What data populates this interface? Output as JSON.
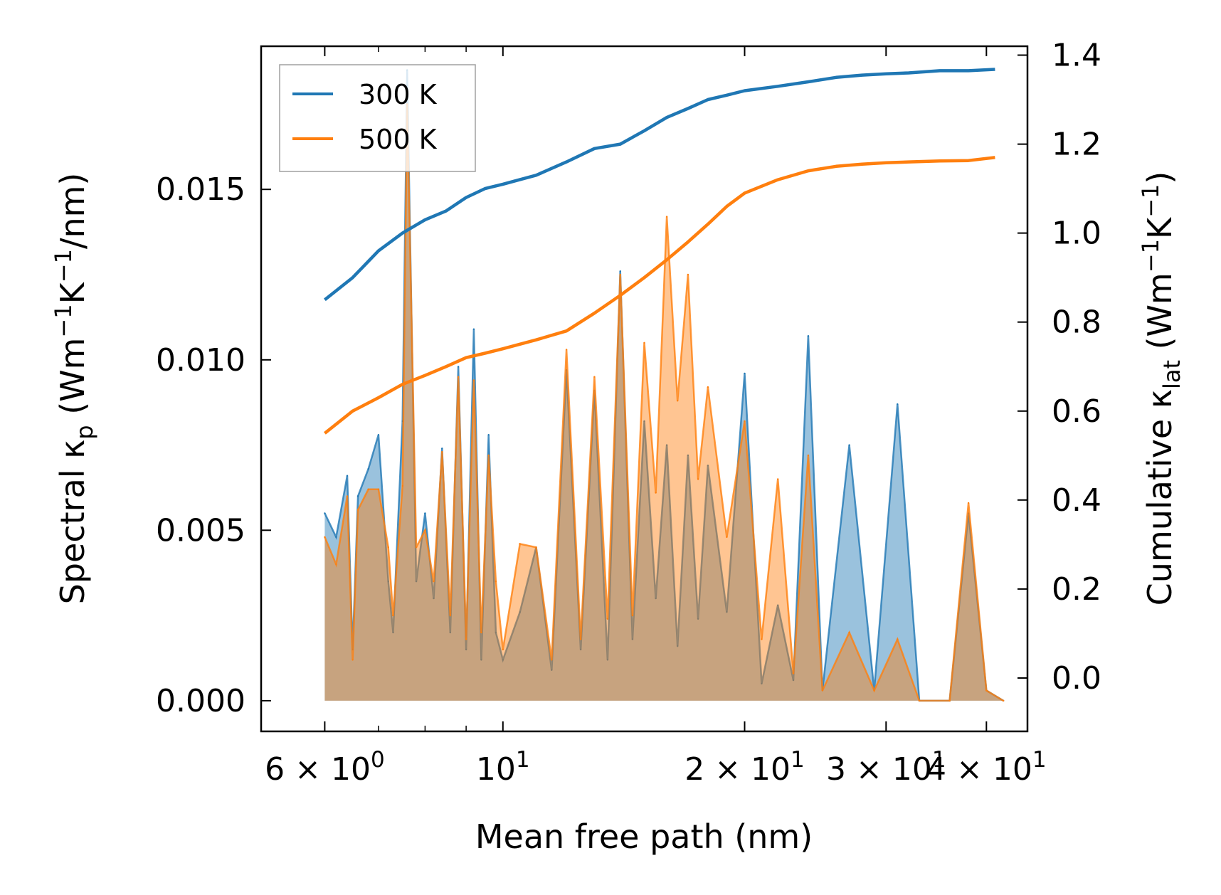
{
  "chart_data": {
    "type": "line",
    "xscale": "log",
    "xlabel": "Mean free path (nm)",
    "ylabel_left": {
      "main": "Spectral κ",
      "sub": "p",
      "unit_prefix": " (Wm",
      "exp1": "−1",
      "unit_mid": "K",
      "exp2": "−1",
      "unit_suffix": "/nm)"
    },
    "ylabel_right": {
      "main": "Cumulative κ",
      "sub": "lat",
      "unit_prefix": " (Wm",
      "exp1": "−1",
      "unit_mid": "K",
      "exp2": "−1",
      "unit_suffix": ")"
    },
    "xlim": [
      5.0,
      45.0
    ],
    "ylim_left": [
      -0.0009,
      0.0192
    ],
    "ylim_right": [
      -0.12,
      1.42
    ],
    "x_ticks": [
      {
        "value": 6,
        "mant": "6 × 10",
        "exp": "0"
      },
      {
        "value": 10,
        "mant": "10",
        "exp": "1"
      },
      {
        "value": 20,
        "mant": "2 × 10",
        "exp": "1"
      },
      {
        "value": 30,
        "mant": "3 × 10",
        "exp": "1"
      },
      {
        "value": 40,
        "mant": "4 × 10",
        "exp": "1"
      }
    ],
    "x_minor_ticks": [
      7,
      8,
      9
    ],
    "y_left_ticks": [
      {
        "value": 0.0,
        "label": "0.000"
      },
      {
        "value": 0.005,
        "label": "0.005"
      },
      {
        "value": 0.01,
        "label": "0.010"
      },
      {
        "value": 0.015,
        "label": "0.015"
      }
    ],
    "y_right_ticks": [
      {
        "value": 0.0,
        "label": "0.0"
      },
      {
        "value": 0.2,
        "label": "0.2"
      },
      {
        "value": 0.4,
        "label": "0.4"
      },
      {
        "value": 0.6,
        "label": "0.6"
      },
      {
        "value": 0.8,
        "label": "0.8"
      },
      {
        "value": 1.0,
        "label": "1.0"
      },
      {
        "value": 1.2,
        "label": "1.2"
      },
      {
        "value": 1.4,
        "label": "1.4"
      }
    ],
    "colors": {
      "300K": "#1f77b4",
      "500K": "#ff7f0e"
    },
    "legend": {
      "position": "upper-left",
      "entries": [
        "300 K",
        "500 K"
      ]
    },
    "series": [
      {
        "name": "300 K",
        "axis": "right",
        "kind": "cumulative",
        "x": [
          6.0,
          6.5,
          7.0,
          7.5,
          8.0,
          8.5,
          9.0,
          9.5,
          10.0,
          11.0,
          12.0,
          13.0,
          14.0,
          15.0,
          16.0,
          17.0,
          18.0,
          19.0,
          20.0,
          22.0,
          24.0,
          26.0,
          28.0,
          30.0,
          32.0,
          35.0,
          38.0,
          41.0
        ],
        "y": [
          0.85,
          0.9,
          0.96,
          1.0,
          1.03,
          1.05,
          1.08,
          1.1,
          1.11,
          1.13,
          1.16,
          1.19,
          1.2,
          1.23,
          1.26,
          1.28,
          1.3,
          1.31,
          1.32,
          1.33,
          1.34,
          1.35,
          1.355,
          1.358,
          1.36,
          1.365,
          1.365,
          1.368
        ]
      },
      {
        "name": "500 K",
        "axis": "right",
        "kind": "cumulative",
        "x": [
          6.0,
          6.5,
          7.0,
          7.5,
          8.0,
          8.5,
          9.0,
          9.5,
          10.0,
          11.0,
          12.0,
          13.0,
          14.0,
          15.0,
          16.0,
          17.0,
          18.0,
          19.0,
          20.0,
          22.0,
          24.0,
          26.0,
          28.0,
          30.0,
          32.0,
          35.0,
          38.0,
          41.0
        ],
        "y": [
          0.55,
          0.6,
          0.63,
          0.66,
          0.68,
          0.7,
          0.72,
          0.73,
          0.74,
          0.76,
          0.78,
          0.82,
          0.86,
          0.9,
          0.94,
          0.98,
          1.02,
          1.06,
          1.09,
          1.12,
          1.14,
          1.15,
          1.155,
          1.158,
          1.16,
          1.162,
          1.163,
          1.17
        ]
      },
      {
        "name": "300 K",
        "axis": "left",
        "kind": "spectral",
        "x": [
          6.0,
          6.2,
          6.4,
          6.5,
          6.6,
          6.8,
          7.0,
          7.2,
          7.3,
          7.5,
          7.6,
          7.8,
          8.0,
          8.2,
          8.4,
          8.6,
          8.8,
          9.0,
          9.2,
          9.4,
          9.6,
          9.8,
          10.0,
          10.5,
          11.0,
          11.5,
          12.0,
          12.5,
          13.0,
          13.5,
          14.0,
          14.5,
          15.0,
          15.5,
          16.0,
          16.5,
          17.0,
          17.5,
          18.0,
          19.0,
          20.0,
          21.0,
          22.0,
          23.0,
          24.0,
          25.0,
          27.0,
          29.0,
          31.0,
          33.0,
          36.0,
          38.0,
          40.0,
          42.0
        ],
        "y": [
          0.0055,
          0.0048,
          0.0066,
          0.0015,
          0.006,
          0.0068,
          0.0078,
          0.0035,
          0.002,
          0.0082,
          0.0185,
          0.0035,
          0.0055,
          0.003,
          0.0074,
          0.002,
          0.0098,
          0.0015,
          0.0109,
          0.0012,
          0.0078,
          0.002,
          0.0012,
          0.0026,
          0.0045,
          0.0009,
          0.0097,
          0.0015,
          0.0091,
          0.0012,
          0.0126,
          0.0018,
          0.0082,
          0.003,
          0.0075,
          0.0016,
          0.0072,
          0.0024,
          0.0069,
          0.0026,
          0.0096,
          0.0005,
          0.0028,
          0.0006,
          0.0107,
          0.0003,
          0.0075,
          0.0003,
          0.0087,
          0.0,
          0.0,
          0.0055,
          0.0003,
          0.0
        ]
      },
      {
        "name": "500 K",
        "axis": "left",
        "kind": "spectral",
        "x": [
          6.0,
          6.2,
          6.4,
          6.5,
          6.6,
          6.8,
          7.0,
          7.2,
          7.3,
          7.5,
          7.6,
          7.8,
          8.0,
          8.2,
          8.4,
          8.6,
          8.8,
          9.0,
          9.2,
          9.4,
          9.6,
          9.8,
          10.0,
          10.5,
          11.0,
          11.5,
          12.0,
          12.5,
          13.0,
          13.5,
          14.0,
          14.5,
          15.0,
          15.5,
          16.0,
          16.5,
          17.0,
          17.5,
          18.0,
          19.0,
          20.0,
          21.0,
          22.0,
          23.0,
          24.0,
          25.0,
          27.0,
          29.0,
          31.0,
          33.0,
          36.0,
          38.0,
          40.0,
          42.0
        ],
        "y": [
          0.0048,
          0.004,
          0.006,
          0.0012,
          0.0056,
          0.0062,
          0.0062,
          0.0045,
          0.0025,
          0.0063,
          0.0175,
          0.0045,
          0.005,
          0.0035,
          0.0073,
          0.0025,
          0.0095,
          0.0018,
          0.0094,
          0.002,
          0.0072,
          0.0035,
          0.0015,
          0.0046,
          0.0045,
          0.0012,
          0.0103,
          0.0018,
          0.0095,
          0.0024,
          0.0125,
          0.0025,
          0.0105,
          0.0061,
          0.0142,
          0.0088,
          0.0125,
          0.0065,
          0.0092,
          0.0048,
          0.0082,
          0.0018,
          0.0065,
          0.0008,
          0.0072,
          0.0003,
          0.002,
          0.0003,
          0.0018,
          0.0,
          0.0,
          0.0058,
          0.0003,
          0.0
        ]
      }
    ]
  }
}
